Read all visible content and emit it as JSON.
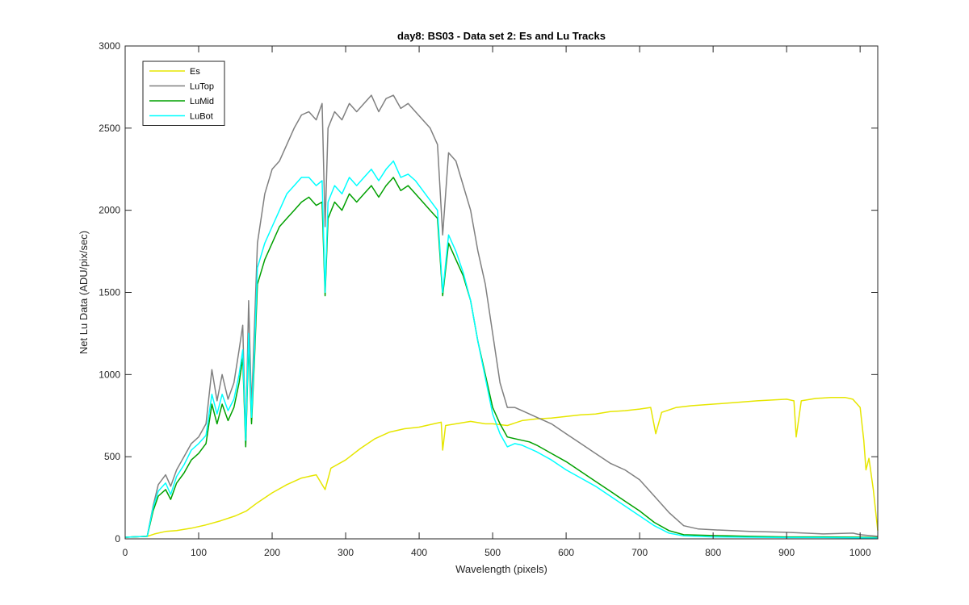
{
  "chart_data": {
    "type": "line",
    "title": "day8: BS03 - Data set 2: Es and Lu Tracks",
    "xlabel": "Wavelength (pixels)",
    "ylabel": "Net Lu Data (ADU/pix/sec)",
    "xlim": [
      0,
      1024
    ],
    "ylim": [
      0,
      3000
    ],
    "xticks": [
      0,
      100,
      200,
      300,
      400,
      500,
      600,
      700,
      800,
      900,
      1000
    ],
    "yticks": [
      0,
      500,
      1000,
      1500,
      2000,
      2500,
      3000
    ],
    "grid": false,
    "legend_position": "top-left",
    "series": [
      {
        "name": "Es",
        "color": "#e6e600",
        "points": [
          [
            0,
            10
          ],
          [
            30,
            15
          ],
          [
            40,
            30
          ],
          [
            55,
            45
          ],
          [
            70,
            50
          ],
          [
            90,
            65
          ],
          [
            110,
            85
          ],
          [
            130,
            110
          ],
          [
            150,
            140
          ],
          [
            165,
            170
          ],
          [
            180,
            220
          ],
          [
            200,
            280
          ],
          [
            220,
            330
          ],
          [
            240,
            370
          ],
          [
            260,
            390
          ],
          [
            272,
            300
          ],
          [
            280,
            430
          ],
          [
            300,
            480
          ],
          [
            320,
            550
          ],
          [
            340,
            610
          ],
          [
            360,
            650
          ],
          [
            380,
            670
          ],
          [
            400,
            680
          ],
          [
            420,
            700
          ],
          [
            430,
            710
          ],
          [
            432,
            540
          ],
          [
            436,
            690
          ],
          [
            450,
            700
          ],
          [
            470,
            715
          ],
          [
            490,
            700
          ],
          [
            500,
            700
          ],
          [
            520,
            690
          ],
          [
            540,
            720
          ],
          [
            560,
            730
          ],
          [
            580,
            735
          ],
          [
            600,
            745
          ],
          [
            620,
            755
          ],
          [
            640,
            760
          ],
          [
            660,
            775
          ],
          [
            680,
            780
          ],
          [
            700,
            790
          ],
          [
            715,
            800
          ],
          [
            722,
            640
          ],
          [
            730,
            770
          ],
          [
            750,
            800
          ],
          [
            770,
            810
          ],
          [
            800,
            820
          ],
          [
            830,
            830
          ],
          [
            860,
            840
          ],
          [
            880,
            845
          ],
          [
            900,
            850
          ],
          [
            910,
            840
          ],
          [
            913,
            620
          ],
          [
            920,
            840
          ],
          [
            940,
            855
          ],
          [
            960,
            860
          ],
          [
            980,
            860
          ],
          [
            990,
            850
          ],
          [
            1000,
            800
          ],
          [
            1005,
            600
          ],
          [
            1008,
            420
          ],
          [
            1012,
            490
          ],
          [
            1018,
            300
          ],
          [
            1024,
            50
          ]
        ]
      },
      {
        "name": "LuTop",
        "color": "#808080",
        "points": [
          [
            0,
            10
          ],
          [
            30,
            15
          ],
          [
            38,
            200
          ],
          [
            45,
            330
          ],
          [
            55,
            390
          ],
          [
            62,
            320
          ],
          [
            70,
            420
          ],
          [
            80,
            500
          ],
          [
            90,
            580
          ],
          [
            100,
            620
          ],
          [
            110,
            700
          ],
          [
            118,
            1030
          ],
          [
            125,
            840
          ],
          [
            132,
            1000
          ],
          [
            140,
            850
          ],
          [
            148,
            950
          ],
          [
            155,
            1150
          ],
          [
            160,
            1300
          ],
          [
            164,
            600
          ],
          [
            168,
            1450
          ],
          [
            172,
            800
          ],
          [
            176,
            1300
          ],
          [
            180,
            1800
          ],
          [
            190,
            2100
          ],
          [
            200,
            2250
          ],
          [
            210,
            2300
          ],
          [
            220,
            2400
          ],
          [
            230,
            2500
          ],
          [
            240,
            2580
          ],
          [
            250,
            2600
          ],
          [
            260,
            2550
          ],
          [
            268,
            2650
          ],
          [
            272,
            1900
          ],
          [
            276,
            2500
          ],
          [
            285,
            2600
          ],
          [
            295,
            2550
          ],
          [
            305,
            2650
          ],
          [
            315,
            2600
          ],
          [
            325,
            2650
          ],
          [
            335,
            2700
          ],
          [
            345,
            2600
          ],
          [
            355,
            2680
          ],
          [
            365,
            2700
          ],
          [
            375,
            2620
          ],
          [
            385,
            2650
          ],
          [
            395,
            2600
          ],
          [
            405,
            2550
          ],
          [
            415,
            2500
          ],
          [
            425,
            2400
          ],
          [
            432,
            1850
          ],
          [
            440,
            2350
          ],
          [
            450,
            2300
          ],
          [
            460,
            2150
          ],
          [
            470,
            2000
          ],
          [
            480,
            1750
          ],
          [
            490,
            1550
          ],
          [
            500,
            1250
          ],
          [
            510,
            950
          ],
          [
            520,
            800
          ],
          [
            530,
            800
          ],
          [
            540,
            780
          ],
          [
            550,
            760
          ],
          [
            560,
            740
          ],
          [
            580,
            700
          ],
          [
            600,
            640
          ],
          [
            620,
            580
          ],
          [
            640,
            520
          ],
          [
            660,
            460
          ],
          [
            680,
            420
          ],
          [
            700,
            360
          ],
          [
            720,
            260
          ],
          [
            740,
            160
          ],
          [
            760,
            80
          ],
          [
            780,
            60
          ],
          [
            800,
            55
          ],
          [
            850,
            45
          ],
          [
            900,
            40
          ],
          [
            950,
            30
          ],
          [
            990,
            35
          ],
          [
            1000,
            25
          ],
          [
            1024,
            15
          ]
        ]
      },
      {
        "name": "LuMid",
        "color": "#00a000",
        "points": [
          [
            0,
            10
          ],
          [
            30,
            15
          ],
          [
            38,
            170
          ],
          [
            45,
            260
          ],
          [
            55,
            300
          ],
          [
            62,
            240
          ],
          [
            70,
            340
          ],
          [
            80,
            400
          ],
          [
            90,
            480
          ],
          [
            100,
            520
          ],
          [
            110,
            580
          ],
          [
            118,
            820
          ],
          [
            125,
            700
          ],
          [
            132,
            820
          ],
          [
            140,
            720
          ],
          [
            148,
            800
          ],
          [
            155,
            950
          ],
          [
            160,
            1100
          ],
          [
            164,
            560
          ],
          [
            168,
            1200
          ],
          [
            172,
            700
          ],
          [
            176,
            1100
          ],
          [
            180,
            1550
          ],
          [
            190,
            1700
          ],
          [
            200,
            1800
          ],
          [
            210,
            1900
          ],
          [
            220,
            1950
          ],
          [
            230,
            2000
          ],
          [
            240,
            2050
          ],
          [
            250,
            2080
          ],
          [
            260,
            2030
          ],
          [
            268,
            2050
          ],
          [
            272,
            1480
          ],
          [
            276,
            1950
          ],
          [
            285,
            2050
          ],
          [
            295,
            2000
          ],
          [
            305,
            2100
          ],
          [
            315,
            2050
          ],
          [
            325,
            2100
          ],
          [
            335,
            2150
          ],
          [
            345,
            2080
          ],
          [
            355,
            2150
          ],
          [
            365,
            2200
          ],
          [
            375,
            2120
          ],
          [
            385,
            2150
          ],
          [
            395,
            2100
          ],
          [
            405,
            2050
          ],
          [
            415,
            2000
          ],
          [
            425,
            1950
          ],
          [
            432,
            1480
          ],
          [
            440,
            1800
          ],
          [
            450,
            1700
          ],
          [
            460,
            1600
          ],
          [
            470,
            1450
          ],
          [
            480,
            1200
          ],
          [
            490,
            1000
          ],
          [
            500,
            800
          ],
          [
            510,
            700
          ],
          [
            520,
            620
          ],
          [
            530,
            610
          ],
          [
            540,
            600
          ],
          [
            550,
            590
          ],
          [
            560,
            570
          ],
          [
            580,
            520
          ],
          [
            600,
            470
          ],
          [
            620,
            410
          ],
          [
            640,
            350
          ],
          [
            660,
            290
          ],
          [
            680,
            230
          ],
          [
            700,
            170
          ],
          [
            720,
            100
          ],
          [
            740,
            50
          ],
          [
            760,
            25
          ],
          [
            800,
            20
          ],
          [
            850,
            15
          ],
          [
            900,
            12
          ],
          [
            950,
            12
          ],
          [
            1000,
            10
          ],
          [
            1024,
            8
          ]
        ]
      },
      {
        "name": "LuBot",
        "color": "#00ffff",
        "points": [
          [
            0,
            10
          ],
          [
            30,
            15
          ],
          [
            38,
            190
          ],
          [
            45,
            290
          ],
          [
            55,
            340
          ],
          [
            62,
            270
          ],
          [
            70,
            380
          ],
          [
            80,
            450
          ],
          [
            90,
            540
          ],
          [
            100,
            580
          ],
          [
            110,
            630
          ],
          [
            118,
            880
          ],
          [
            125,
            760
          ],
          [
            132,
            880
          ],
          [
            140,
            780
          ],
          [
            148,
            850
          ],
          [
            155,
            1000
          ],
          [
            160,
            1150
          ],
          [
            164,
            600
          ],
          [
            168,
            1250
          ],
          [
            172,
            740
          ],
          [
            176,
            1150
          ],
          [
            180,
            1650
          ],
          [
            190,
            1800
          ],
          [
            200,
            1900
          ],
          [
            210,
            2000
          ],
          [
            220,
            2100
          ],
          [
            230,
            2150
          ],
          [
            240,
            2200
          ],
          [
            250,
            2200
          ],
          [
            260,
            2150
          ],
          [
            268,
            2180
          ],
          [
            272,
            1500
          ],
          [
            276,
            2050
          ],
          [
            285,
            2150
          ],
          [
            295,
            2100
          ],
          [
            305,
            2200
          ],
          [
            315,
            2150
          ],
          [
            325,
            2200
          ],
          [
            335,
            2250
          ],
          [
            345,
            2180
          ],
          [
            355,
            2250
          ],
          [
            365,
            2300
          ],
          [
            375,
            2200
          ],
          [
            385,
            2220
          ],
          [
            395,
            2180
          ],
          [
            405,
            2120
          ],
          [
            415,
            2060
          ],
          [
            425,
            2000
          ],
          [
            432,
            1500
          ],
          [
            440,
            1850
          ],
          [
            450,
            1750
          ],
          [
            460,
            1620
          ],
          [
            470,
            1450
          ],
          [
            480,
            1200
          ],
          [
            490,
            980
          ],
          [
            500,
            760
          ],
          [
            510,
            640
          ],
          [
            520,
            560
          ],
          [
            530,
            580
          ],
          [
            540,
            570
          ],
          [
            550,
            550
          ],
          [
            560,
            530
          ],
          [
            580,
            480
          ],
          [
            600,
            420
          ],
          [
            620,
            370
          ],
          [
            640,
            320
          ],
          [
            660,
            260
          ],
          [
            680,
            200
          ],
          [
            700,
            140
          ],
          [
            720,
            80
          ],
          [
            740,
            35
          ],
          [
            760,
            18
          ],
          [
            800,
            12
          ],
          [
            850,
            10
          ],
          [
            900,
            8
          ],
          [
            950,
            8
          ],
          [
            1000,
            6
          ],
          [
            1024,
            5
          ]
        ]
      }
    ]
  }
}
